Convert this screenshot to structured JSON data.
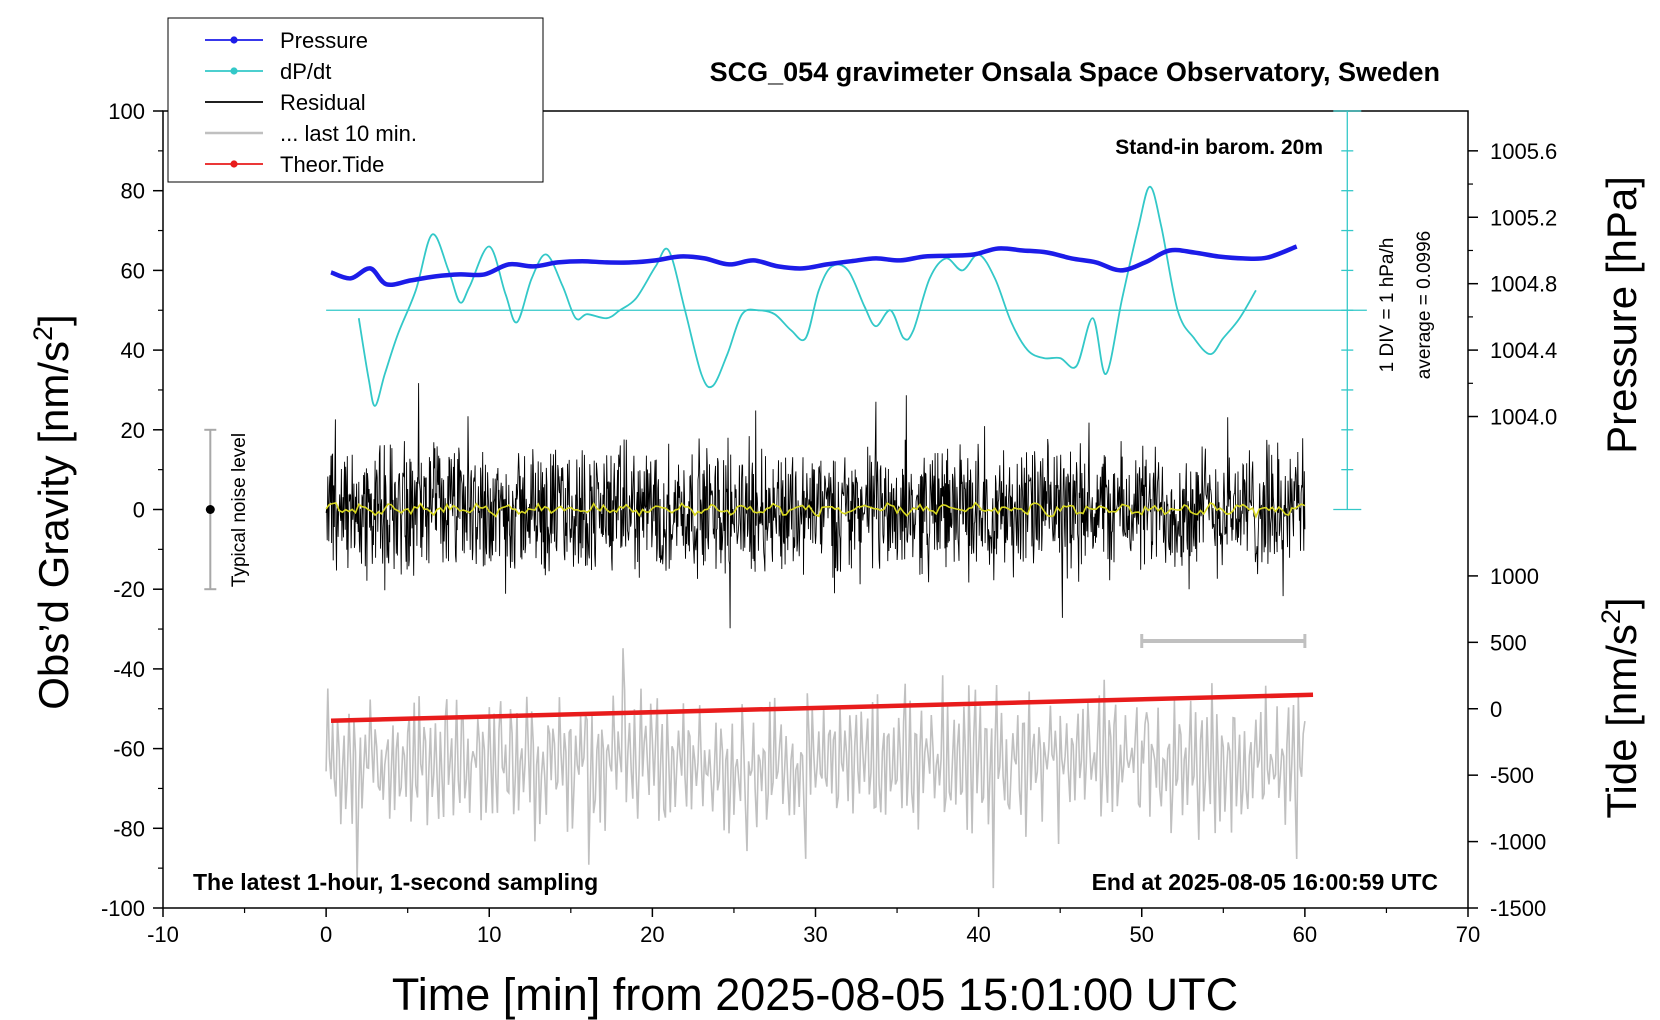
{
  "chart_data": {
    "type": "line",
    "title": "SCG_054 gravimeter Onsala Space Observatory, Sweden",
    "xlabel": "Time [min] from 2025-08-05 15:01:00 UTC",
    "xlim": [
      -10,
      70
    ],
    "x_ticks": [
      "-10",
      "0",
      "10",
      "20",
      "30",
      "40",
      "50",
      "60",
      "70"
    ],
    "left_axis": {
      "label_main": "Obs’d Gravity [nm/s",
      "label_sup": "2",
      "label_tail": "]",
      "ylim": [
        -100,
        100
      ],
      "ticks": [
        "100",
        "80",
        "60",
        "40",
        "20",
        "0",
        "-20",
        "-40",
        "-60",
        "-80",
        "-100"
      ]
    },
    "pressure_axis": {
      "label": "Pressure [hPa]",
      "ticks": [
        "1005.6",
        "1005.2",
        "1004.8",
        "1004.4",
        "1004.0"
      ]
    },
    "tide_axis": {
      "label_main": "Tide [nm/s",
      "label_sup": "2",
      "label_tail": "]",
      "ticks": [
        "1000",
        "500",
        "0",
        "-500",
        "-1000",
        "-1500"
      ]
    },
    "legend": {
      "placement": "top-left",
      "items": [
        {
          "label": "Pressure",
          "color": "#1c1ce8",
          "marker": true
        },
        {
          "label": "dP/dt",
          "color": "#33c8c8",
          "marker": true
        },
        {
          "label": "Residual",
          "color": "#000000",
          "marker": false
        },
        {
          "label": "... last 10 min.",
          "color": "#c0c0c0",
          "marker": false
        },
        {
          "label": "Theor.Tide",
          "color": "#e81c1c",
          "marker": true
        }
      ]
    },
    "annotations": {
      "barometer": "Stand-in barom. 20m",
      "div_note": "1 DIV = 1 hPa/h",
      "average_note": "average = 0.0996",
      "noise_level": "Typical noise level",
      "latest": "The latest 1-hour, 1-second sampling",
      "end_time": "End at 2025-08-05 16:00:59 UTC"
    },
    "noise_level_range": [
      -20,
      20
    ],
    "last10_bar_range": [
      50,
      60
    ],
    "series": [
      {
        "name": "Pressure",
        "color": "#1c1ce8",
        "x": [
          0.3,
          1.5,
          2.7,
          3.7,
          5.2,
          6.7,
          8.2,
          9.7,
          11.2,
          12.7,
          14.2,
          15.7,
          17.2,
          18.7,
          20.2,
          21.7,
          23.2,
          24.7,
          26.2,
          27.7,
          29.2,
          30.7,
          32.2,
          33.7,
          35.2,
          36.7,
          38.2,
          39.7,
          41.2,
          42.7,
          44.2,
          45.7,
          47.2,
          48.7,
          50.2,
          51.7,
          53.2,
          54.7,
          56.2,
          57.7,
          59.5
        ],
        "y": [
          59.5,
          58.0,
          60.5,
          56.5,
          57.5,
          58.5,
          59.0,
          59.0,
          61.5,
          61.0,
          62.0,
          62.3,
          62.0,
          62.0,
          62.5,
          63.5,
          63.0,
          61.5,
          62.5,
          61.0,
          60.5,
          61.5,
          62.3,
          63.0,
          62.5,
          63.5,
          63.7,
          64.0,
          65.5,
          65.0,
          64.5,
          63.0,
          62.0,
          60.0,
          62.0,
          65.0,
          64.5,
          63.5,
          63.0,
          63.2,
          66.0
        ]
      },
      {
        "name": "dP/dt",
        "color": "#33c8c8",
        "x": [
          2.0,
          2.6,
          3.0,
          3.6,
          4.4,
          5.5,
          6.5,
          7.5,
          8.2,
          8.8,
          10.0,
          11.0,
          11.7,
          12.6,
          13.5,
          14.5,
          15.3,
          16.0,
          17.2,
          18.0,
          19.0,
          20.2,
          21.0,
          22.0,
          23.0,
          23.7,
          24.6,
          25.5,
          26.5,
          27.5,
          28.5,
          29.4,
          30.2,
          31.0,
          32.0,
          33.0,
          33.7,
          34.6,
          35.4,
          36.0,
          37.0,
          38.0,
          39.0,
          40.0,
          41.0,
          42.0,
          43.0,
          44.0,
          45.0,
          46.0,
          47.0,
          47.8,
          48.8,
          49.8,
          50.5,
          51.2,
          52.2,
          53.2,
          54.2,
          55.0,
          56.0,
          57.0
        ],
        "y": [
          48.0,
          33.0,
          26.0,
          34.0,
          44.0,
          55.0,
          69.0,
          60.0,
          52.0,
          56.0,
          66.0,
          54.0,
          47.0,
          58.0,
          64.0,
          56.0,
          48.0,
          49.0,
          48.0,
          50.0,
          53.0,
          61.0,
          65.0,
          50.0,
          34.0,
          31.0,
          39.0,
          49.0,
          50.0,
          49.0,
          45.0,
          43.0,
          55.0,
          61.0,
          60.0,
          51.0,
          46.0,
          50.0,
          43.0,
          45.0,
          58.0,
          63.0,
          60.0,
          64.0,
          58.0,
          47.0,
          40.0,
          38.0,
          38.0,
          36.0,
          48.0,
          34.0,
          53.0,
          71.0,
          81.0,
          71.0,
          50.0,
          43.0,
          39.0,
          43.0,
          48.0,
          55.0
        ]
      },
      {
        "name": "Residual",
        "color": "#000000",
        "x_range": [
          0,
          60
        ],
        "amplitude": 12
      },
      {
        "name": "... last 10 min.",
        "color": "#c0c0c0",
        "x_range": [
          0,
          60
        ],
        "offset": -63,
        "amplitude": 11
      },
      {
        "name": "Theor.Tide",
        "color": "#e81c1c",
        "x": [
          0.3,
          60.5
        ],
        "y": [
          -53.0,
          -46.5
        ]
      }
    ]
  }
}
